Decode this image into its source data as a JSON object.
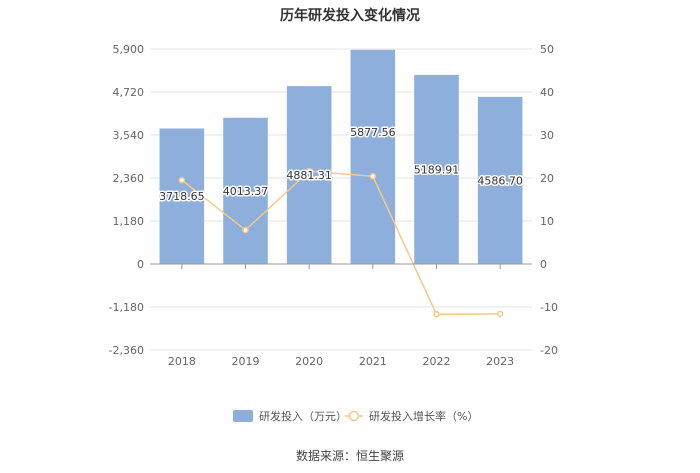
{
  "chart_data": {
    "type": "bar",
    "title": "历年研发投入变化情况",
    "categories": [
      "2018",
      "2019",
      "2020",
      "2021",
      "2022",
      "2023"
    ],
    "series": [
      {
        "name": "研发投入（万元）",
        "type": "bar",
        "axis": "left",
        "values": [
          3718.65,
          4013.37,
          4881.31,
          5877.56,
          5189.91,
          4586.7
        ],
        "labels": [
          "3718.65",
          "4013.37",
          "4881.31",
          "5877.56",
          "5189.91",
          "4586.70"
        ],
        "color": "#8eaedb"
      },
      {
        "name": "研发投入增长率（%）",
        "type": "line",
        "axis": "right",
        "values": [
          19.5,
          7.9,
          21.6,
          20.4,
          -11.7,
          -11.6
        ],
        "color": "#f5c98a"
      }
    ],
    "y_left": {
      "ylim": [
        -2360,
        5900
      ],
      "ticks": [
        -2360,
        -1180,
        0,
        1180,
        2360,
        3540,
        4720,
        5900
      ],
      "tick_labels": [
        "-2,360",
        "-1,180",
        "0",
        "1,180",
        "2,360",
        "3,540",
        "4,720",
        "5,900"
      ]
    },
    "y_right": {
      "ylim": [
        -20,
        50
      ],
      "ticks": [
        -20,
        -10,
        0,
        10,
        20,
        30,
        40,
        50
      ],
      "tick_labels": [
        "-20",
        "-10",
        "0",
        "10",
        "20",
        "30",
        "40",
        "50"
      ]
    },
    "grid": true,
    "legend_position": "bottom"
  },
  "source": "数据来源：恒生聚源"
}
